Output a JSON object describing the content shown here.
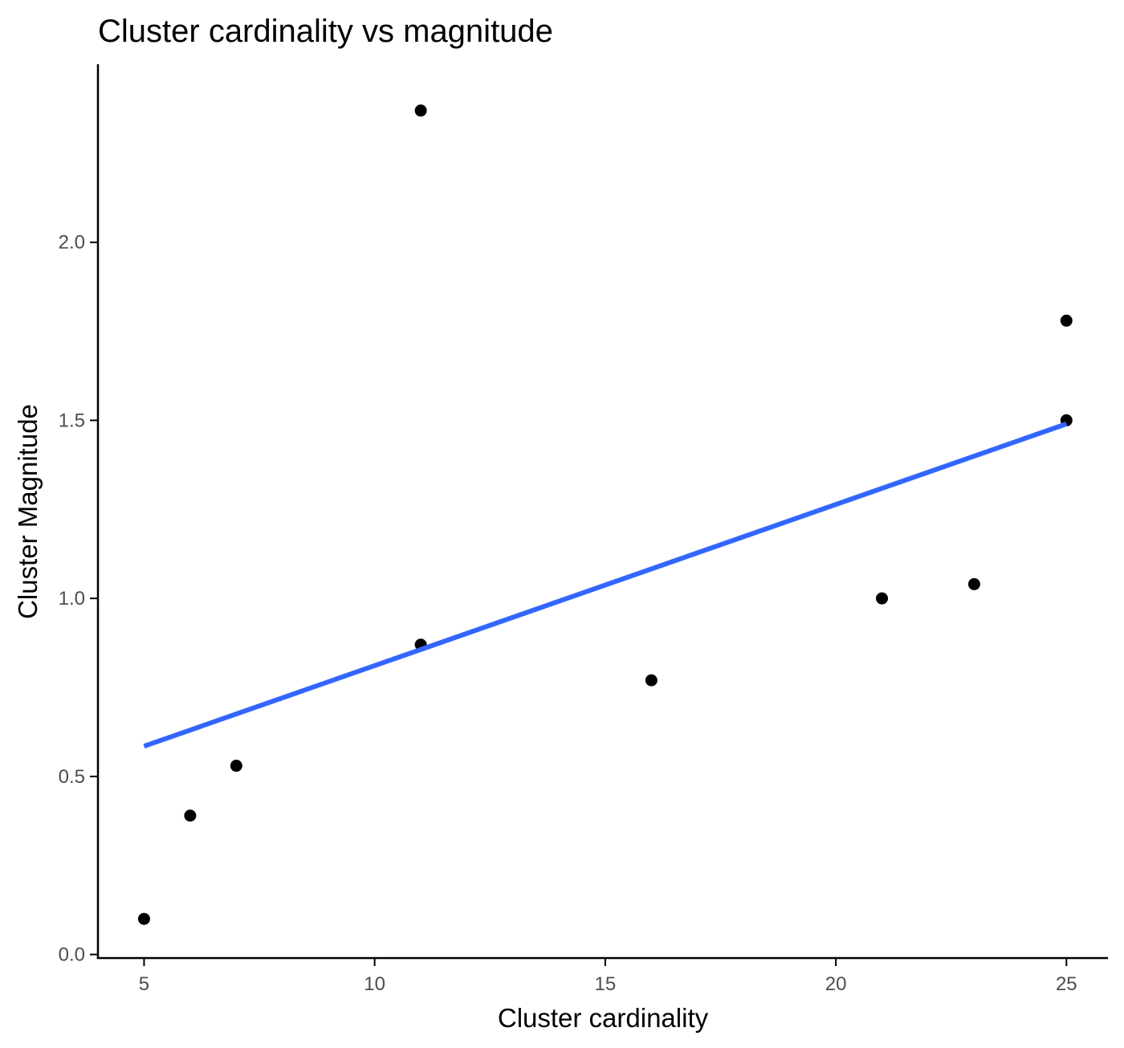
{
  "chart_data": {
    "type": "scatter",
    "title": "Cluster cardinality vs magnitude",
    "xlabel": "Cluster cardinality",
    "ylabel": "Cluster Magnitude",
    "xlim": [
      4.0,
      25.9
    ],
    "ylim": [
      -0.01,
      2.5
    ],
    "x_ticks": [
      5,
      10,
      15,
      20,
      25
    ],
    "x_tick_labels": [
      "5",
      "10",
      "15",
      "20",
      "25"
    ],
    "y_ticks": [
      0.0,
      0.5,
      1.0,
      1.5,
      2.0
    ],
    "y_tick_labels": [
      "0.0",
      "0.5",
      "1.0",
      "1.5",
      "2.0"
    ],
    "grid": false,
    "legend": "none",
    "colors": {
      "points": "#000000",
      "trend_line": "#3366FF",
      "axis": "#000000",
      "tick_text": "#4d4d4d"
    },
    "points": [
      {
        "x": 5,
        "y": 0.1
      },
      {
        "x": 6,
        "y": 0.39
      },
      {
        "x": 7,
        "y": 0.53
      },
      {
        "x": 11,
        "y": 0.87
      },
      {
        "x": 11,
        "y": 2.37
      },
      {
        "x": 16,
        "y": 0.77
      },
      {
        "x": 21,
        "y": 1.0
      },
      {
        "x": 23,
        "y": 1.04
      },
      {
        "x": 25,
        "y": 1.5
      },
      {
        "x": 25,
        "y": 1.78
      }
    ],
    "trend_line": {
      "type": "linear",
      "x": [
        5,
        25
      ],
      "y": [
        0.585,
        1.49
      ]
    }
  }
}
